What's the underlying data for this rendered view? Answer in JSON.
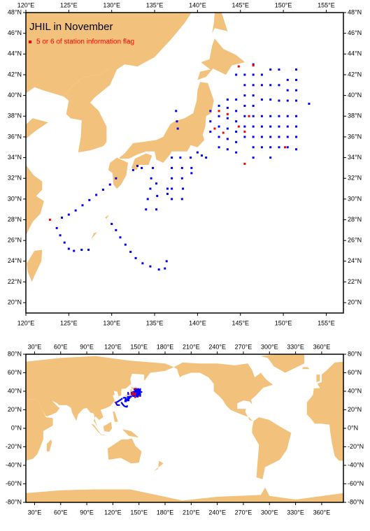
{
  "chart_data": [
    {
      "type": "scatter",
      "title": "JHIL in November",
      "xlim": [
        120,
        157
      ],
      "ylim": [
        19,
        48
      ],
      "xticks": [
        {
          "value": 120,
          "label": "120°E"
        },
        {
          "value": 125,
          "label": "125°E"
        },
        {
          "value": 130,
          "label": "130°E"
        },
        {
          "value": 135,
          "label": "135°E"
        },
        {
          "value": 140,
          "label": "140°E"
        },
        {
          "value": 145,
          "label": "145°E"
        },
        {
          "value": 150,
          "label": "150°E"
        },
        {
          "value": 155,
          "label": "155°E"
        }
      ],
      "yticks": [
        {
          "value": 20,
          "label": "20°N"
        },
        {
          "value": 22,
          "label": "22°N"
        },
        {
          "value": 24,
          "label": "24°N"
        },
        {
          "value": 26,
          "label": "26°N"
        },
        {
          "value": 28,
          "label": "28°N"
        },
        {
          "value": 30,
          "label": "30°N"
        },
        {
          "value": 32,
          "label": "32°N"
        },
        {
          "value": 34,
          "label": "34°N"
        },
        {
          "value": 36,
          "label": "36°N"
        },
        {
          "value": 38,
          "label": "38°N"
        },
        {
          "value": 40,
          "label": "40°N"
        },
        {
          "value": 42,
          "label": "42°N"
        },
        {
          "value": 44,
          "label": "44°N"
        },
        {
          "value": 46,
          "label": "46°N"
        },
        {
          "value": 48,
          "label": "48°N"
        }
      ],
      "series": [
        {
          "color": "#0000ff",
          "x": [
            130.5,
            129.8,
            129,
            128.2,
            127.4,
            126.6,
            125.8,
            125,
            124.2,
            123.6,
            124,
            124.5,
            125,
            125.6,
            126.5,
            127.3,
            130,
            130.5,
            131,
            131.6,
            132.2,
            132.8,
            133.6,
            134.5,
            135.5,
            136.2,
            136.4,
            134.8,
            134.6,
            134.5,
            134.2,
            134,
            135.2,
            135.3,
            135.2,
            136.5,
            136.5,
            137,
            137,
            137,
            137,
            137,
            138,
            138.2,
            138.2,
            138.3,
            138.2,
            139.2,
            139.3,
            139.3,
            140,
            140.5,
            141,
            137.5,
            137.6,
            137.7,
            133,
            133.5,
            132.5,
            141.5,
            141.5,
            141.5,
            142.5,
            142.5,
            142.5,
            142.5,
            142.5,
            143.5,
            143.5,
            143.5,
            143.5,
            143.5,
            143.5,
            144.5,
            144.5,
            144.5,
            144.5,
            144.5,
            144.5,
            145.5,
            145.5,
            145.5,
            145.5,
            145.5,
            145.5,
            145.5,
            146.5,
            146.5,
            146.5,
            146.5,
            146.5,
            146.5,
            146.5,
            146.5,
            146.5,
            146.5,
            147.5,
            147.5,
            147.5,
            147.5,
            147.5,
            147.5,
            147.5,
            148.5,
            148.5,
            148.5,
            148.5,
            148.5,
            148.5,
            148.5,
            148.5,
            149.5,
            149.5,
            149.5,
            149.5,
            149.5,
            149.5,
            149.5,
            150.5,
            150.5,
            150.5,
            150.5,
            150.5,
            150.5,
            150.5,
            151.5,
            151.5,
            151.5,
            151.5,
            151.5,
            151.5,
            151.5,
            151.5,
            153,
            144.5
          ],
          "values": [
            32,
            31.4,
            30.9,
            30.4,
            29.9,
            29.4,
            28.9,
            28.5,
            28.2,
            27.2,
            26.5,
            25.8,
            25.2,
            25,
            25.1,
            25.1,
            27.6,
            27,
            26.3,
            25.6,
            24.9,
            24.3,
            23.8,
            23.5,
            23.2,
            23.3,
            24,
            33,
            32,
            31,
            30,
            29,
            31.5,
            30.3,
            29,
            31,
            30.5,
            34,
            33,
            32,
            31,
            30,
            34,
            33,
            32,
            31,
            30,
            34,
            33,
            32.5,
            34.5,
            34.2,
            34,
            38.5,
            37.5,
            36.8,
            33.2,
            33,
            32.8,
            36.5,
            37.5,
            38.5,
            35,
            36,
            37,
            38,
            39,
            34.8,
            35.8,
            36.8,
            37.8,
            38.8,
            39.6,
            34.5,
            35.5,
            36.5,
            37.5,
            38.5,
            39.6,
            36,
            37,
            38,
            39,
            40,
            41,
            42,
            34,
            35,
            36,
            37,
            38,
            39,
            40,
            41,
            42,
            43,
            35,
            36,
            37,
            38,
            39.6,
            41,
            42,
            34,
            35,
            36,
            37,
            38,
            39.6,
            41,
            42.5,
            35,
            36,
            37,
            38,
            39.5,
            41,
            42.5,
            35,
            36,
            37,
            38,
            39.5,
            40.5,
            41.5,
            34.8,
            36,
            37,
            38,
            39.5,
            40.5,
            41.5,
            42.5,
            39.2,
            42
          ]
        },
        {
          "name": "5 or 6 of station information flag",
          "color": "#ff0000",
          "x": [
            122.8,
            144.8,
            146.5,
            142.5,
            143.5,
            144.8,
            145.5,
            145.5,
            150.2,
            146,
            142,
            143
          ],
          "values": [
            28,
            42.8,
            42.9,
            38.5,
            38.2,
            37,
            36.5,
            33.4,
            35,
            38,
            36.8,
            36.4
          ]
        }
      ]
    },
    {
      "type": "scatter",
      "xlim": [
        20,
        385
      ],
      "ylim": [
        -80,
        80
      ],
      "xticks": [
        {
          "value": 30,
          "label": "30°E"
        },
        {
          "value": 60,
          "label": "60°E"
        },
        {
          "value": 90,
          "label": "90°E"
        },
        {
          "value": 120,
          "label": "120°E"
        },
        {
          "value": 150,
          "label": "150°E"
        },
        {
          "value": 180,
          "label": "180°E"
        },
        {
          "value": 210,
          "label": "210°E"
        },
        {
          "value": 240,
          "label": "240°E"
        },
        {
          "value": 270,
          "label": "270°E"
        },
        {
          "value": 300,
          "label": "300°E"
        },
        {
          "value": 330,
          "label": "330°E"
        },
        {
          "value": 360,
          "label": "360°E"
        }
      ],
      "yticks": [
        {
          "value": -80,
          "label": "-80°N"
        },
        {
          "value": -60,
          "label": "-60°N"
        },
        {
          "value": -40,
          "label": "-40°N"
        },
        {
          "value": -20,
          "label": "-20°N"
        },
        {
          "value": 0,
          "label": "0°N"
        },
        {
          "value": 20,
          "label": "20°N"
        },
        {
          "value": 40,
          "label": "40°N"
        },
        {
          "value": 60,
          "label": "60°N"
        },
        {
          "value": 80,
          "label": "80°N"
        }
      ]
    }
  ]
}
